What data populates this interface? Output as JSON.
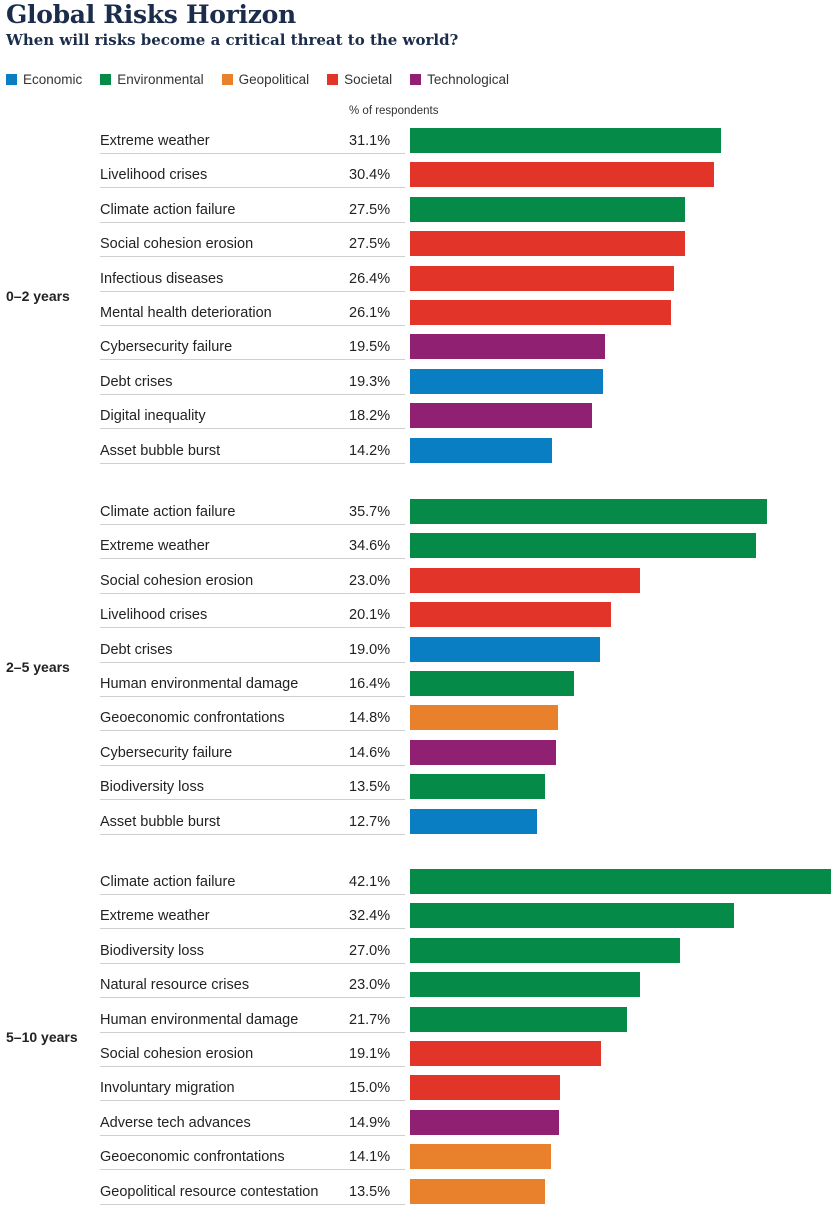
{
  "chart_data": {
    "type": "bar",
    "orientation": "horizontal",
    "title": "Global Risks Horizon",
    "subtitle": "When will risks become a critical threat to the world?",
    "value_header": "% of respondents",
    "xlim": [
      0,
      42.1
    ],
    "legend_position": "top-left",
    "legend": [
      {
        "name": "Economic",
        "color": "#0a7ec2"
      },
      {
        "name": "Environmental",
        "color": "#068a48"
      },
      {
        "name": "Geopolitical",
        "color": "#e8802c"
      },
      {
        "name": "Societal",
        "color": "#e3342a"
      },
      {
        "name": "Technological",
        "color": "#8f2072"
      }
    ],
    "groups": [
      {
        "label": "0–2 years",
        "items": [
          {
            "label": "Extreme weather",
            "value": 31.1,
            "value_label": "31.1%",
            "category": "Environmental"
          },
          {
            "label": "Livelihood crises",
            "value": 30.4,
            "value_label": "30.4%",
            "category": "Societal"
          },
          {
            "label": "Climate action failure",
            "value": 27.5,
            "value_label": "27.5%",
            "category": "Environmental"
          },
          {
            "label": "Social cohesion erosion",
            "value": 27.5,
            "value_label": "27.5%",
            "category": "Societal"
          },
          {
            "label": "Infectious diseases",
            "value": 26.4,
            "value_label": "26.4%",
            "category": "Societal"
          },
          {
            "label": "Mental health deterioration",
            "value": 26.1,
            "value_label": "26.1%",
            "category": "Societal"
          },
          {
            "label": "Cybersecurity failure",
            "value": 19.5,
            "value_label": "19.5%",
            "category": "Technological"
          },
          {
            "label": "Debt crises",
            "value": 19.3,
            "value_label": "19.3%",
            "category": "Economic"
          },
          {
            "label": "Digital inequality",
            "value": 18.2,
            "value_label": "18.2%",
            "category": "Technological"
          },
          {
            "label": "Asset bubble burst",
            "value": 14.2,
            "value_label": "14.2%",
            "category": "Economic"
          }
        ]
      },
      {
        "label": "2–5 years",
        "items": [
          {
            "label": "Climate action failure",
            "value": 35.7,
            "value_label": "35.7%",
            "category": "Environmental"
          },
          {
            "label": "Extreme weather",
            "value": 34.6,
            "value_label": "34.6%",
            "category": "Environmental"
          },
          {
            "label": "Social cohesion erosion",
            "value": 23.0,
            "value_label": "23.0%",
            "category": "Societal"
          },
          {
            "label": "Livelihood crises",
            "value": 20.1,
            "value_label": "20.1%",
            "category": "Societal"
          },
          {
            "label": "Debt crises",
            "value": 19.0,
            "value_label": "19.0%",
            "category": "Economic"
          },
          {
            "label": "Human environmental damage",
            "value": 16.4,
            "value_label": "16.4%",
            "category": "Environmental"
          },
          {
            "label": "Geoeconomic confrontations",
            "value": 14.8,
            "value_label": "14.8%",
            "category": "Geopolitical"
          },
          {
            "label": "Cybersecurity failure",
            "value": 14.6,
            "value_label": "14.6%",
            "category": "Technological"
          },
          {
            "label": "Biodiversity loss",
            "value": 13.5,
            "value_label": "13.5%",
            "category": "Environmental"
          },
          {
            "label": "Asset bubble burst",
            "value": 12.7,
            "value_label": "12.7%",
            "category": "Economic"
          }
        ]
      },
      {
        "label": "5–10 years",
        "items": [
          {
            "label": "Climate action failure",
            "value": 42.1,
            "value_label": "42.1%",
            "category": "Environmental"
          },
          {
            "label": "Extreme weather",
            "value": 32.4,
            "value_label": "32.4%",
            "category": "Environmental"
          },
          {
            "label": "Biodiversity loss",
            "value": 27.0,
            "value_label": "27.0%",
            "category": "Environmental"
          },
          {
            "label": "Natural resource crises",
            "value": 23.0,
            "value_label": "23.0%",
            "category": "Environmental"
          },
          {
            "label": "Human environmental damage",
            "value": 21.7,
            "value_label": "21.7%",
            "category": "Environmental"
          },
          {
            "label": "Social cohesion erosion",
            "value": 19.1,
            "value_label": "19.1%",
            "category": "Societal"
          },
          {
            "label": "Involuntary migration",
            "value": 15.0,
            "value_label": "15.0%",
            "category": "Societal"
          },
          {
            "label": "Adverse tech advances",
            "value": 14.9,
            "value_label": "14.9%",
            "category": "Technological"
          },
          {
            "label": "Geoeconomic confrontations",
            "value": 14.1,
            "value_label": "14.1%",
            "category": "Geopolitical"
          },
          {
            "label": "Geopolitical resource contestation",
            "value": 13.5,
            "value_label": "13.5%",
            "category": "Geopolitical"
          }
        ]
      }
    ]
  }
}
